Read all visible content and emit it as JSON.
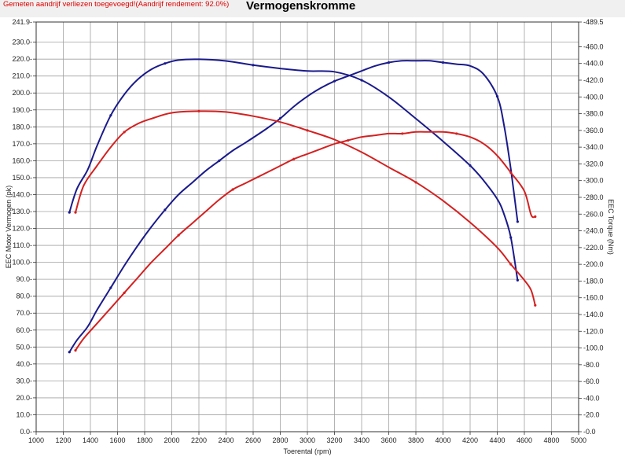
{
  "header": {
    "note": "Gemeten aandrijf verliezen toegevoegd!(Aandrijf rendement: 92.0%)",
    "title": "Vermogenskromme"
  },
  "chart_data": {
    "type": "line",
    "title": "Vermogenskromme",
    "xlabel": "Toerental (rpm)",
    "ylabel_left": "EEC Motor Vermogen (pk)",
    "ylabel_right": "EEC Torque (Nm)",
    "xlim": [
      1000,
      5000
    ],
    "ylim_left": [
      0.0,
      241.9
    ],
    "ylim_right": [
      0.0,
      489.5
    ],
    "grid": true,
    "x_ticks": [
      "1000",
      "1200",
      "1400",
      "1600",
      "1800",
      "2000",
      "2200",
      "2400",
      "2600",
      "2800",
      "3000",
      "3200",
      "3400",
      "3600",
      "3800",
      "4000",
      "4200",
      "4400",
      "4600",
      "4800",
      "5000"
    ],
    "y_left_ticks": [
      "0.0",
      "10.0",
      "20.0",
      "30.0",
      "40.0",
      "50.0",
      "60.0",
      "70.0",
      "80.0",
      "90.0",
      "100.0",
      "110.0",
      "120.0",
      "130.0",
      "140.0",
      "150.0",
      "160.0",
      "170.0",
      "180.0",
      "190.0",
      "200.0",
      "210.0",
      "220.0",
      "230.0",
      "241.9"
    ],
    "y_right_ticks": [
      "0.0",
      "20.0",
      "40.0",
      "60.0",
      "80.0",
      "100.0",
      "120.0",
      "140.0",
      "160.0",
      "180.0",
      "200.0",
      "220.0",
      "240.0",
      "260.0",
      "280.0",
      "300.0",
      "320.0",
      "340.0",
      "360.0",
      "380.0",
      "400.0",
      "420.0",
      "440.0",
      "460.0",
      "489.5"
    ],
    "series": [
      {
        "axis": "left",
        "color": "#1a1a8c",
        "x": [
          1245,
          1300,
          1380,
          1450,
          1550,
          1650,
          1750,
          1850,
          1950,
          2050,
          2150,
          2250,
          2350,
          2450,
          2550,
          2700,
          2800,
          2900,
          3000,
          3100,
          3200,
          3300,
          3400,
          3500,
          3600,
          3700,
          3800,
          3900,
          4000,
          4100,
          4200,
          4300,
          4400,
          4450,
          4500,
          4550
        ],
        "y": [
          47,
          54,
          62,
          72,
          85,
          98,
          110,
          121,
          131,
          140,
          147,
          154,
          160,
          166,
          171,
          179,
          185,
          192,
          198,
          203,
          207,
          210,
          213,
          216,
          218,
          219,
          219,
          219,
          218,
          217,
          216,
          211,
          198,
          181,
          155,
          124
        ]
      },
      {
        "axis": "right",
        "color": "#1a1a8c",
        "x": [
          1245,
          1300,
          1380,
          1450,
          1550,
          1650,
          1750,
          1850,
          1950,
          2050,
          2200,
          2400,
          2600,
          2800,
          3000,
          3200,
          3400,
          3600,
          3800,
          4000,
          4200,
          4300,
          4400,
          4450,
          4500,
          4550
        ],
        "y": [
          262,
          290,
          313,
          342,
          378,
          403,
          421,
          433,
          440,
          444,
          445,
          443,
          438,
          434,
          431,
          430,
          420,
          400,
          374,
          347,
          318,
          300,
          278,
          260,
          232,
          181
        ]
      },
      {
        "axis": "left",
        "color": "#d42020",
        "x": [
          1290,
          1350,
          1450,
          1550,
          1650,
          1750,
          1850,
          1950,
          2050,
          2150,
          2250,
          2350,
          2450,
          2550,
          2700,
          2800,
          2900,
          3000,
          3100,
          3200,
          3300,
          3400,
          3500,
          3600,
          3700,
          3800,
          3900,
          4000,
          4100,
          4200,
          4300,
          4400,
          4500,
          4600,
          4650,
          4680
        ],
        "y": [
          48,
          55,
          64,
          73,
          82,
          91,
          100,
          108,
          116,
          123,
          130,
          137,
          143,
          147,
          153,
          157,
          161,
          164,
          167,
          170,
          172,
          174,
          175,
          176,
          176,
          177,
          177,
          177,
          176,
          174,
          170,
          163,
          153,
          142,
          128,
          127
        ]
      },
      {
        "axis": "right",
        "color": "#d42020",
        "x": [
          1290,
          1350,
          1450,
          1550,
          1650,
          1750,
          1850,
          2000,
          2200,
          2400,
          2600,
          2800,
          3000,
          3200,
          3400,
          3600,
          3800,
          4000,
          4200,
          4400,
          4500,
          4600,
          4650,
          4680
        ],
        "y": [
          262,
          294,
          318,
          340,
          358,
          368,
          374,
          381,
          383,
          382,
          377,
          370,
          360,
          349,
          334,
          316,
          298,
          276,
          250,
          220,
          200,
          181,
          169,
          151
        ]
      }
    ]
  }
}
